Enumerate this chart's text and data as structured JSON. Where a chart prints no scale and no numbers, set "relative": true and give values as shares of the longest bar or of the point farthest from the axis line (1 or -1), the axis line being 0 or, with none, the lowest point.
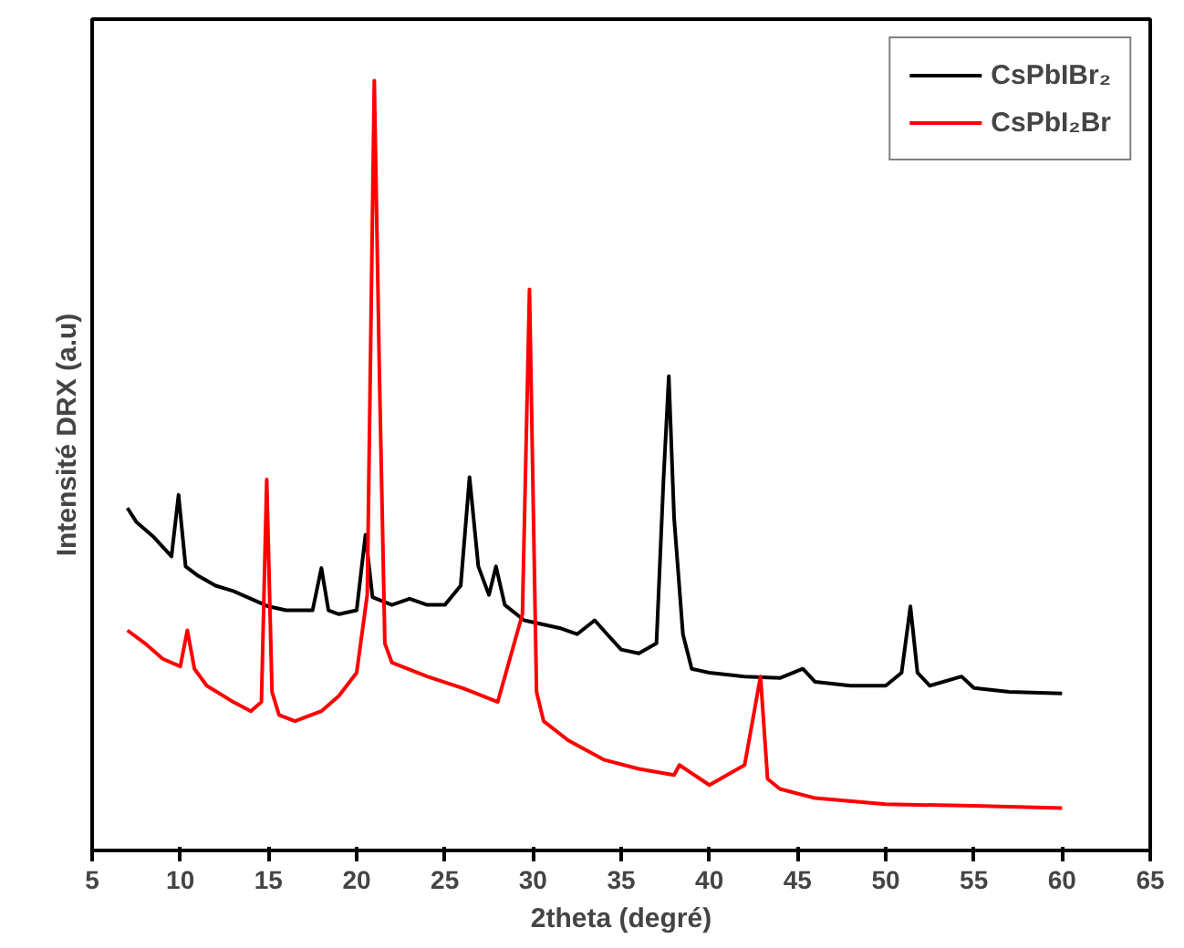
{
  "chart_data": {
    "type": "line",
    "relative": true,
    "xlabel": "2theta (degré)",
    "ylabel": "Intensité DRX (a.u)",
    "xlim": [
      5,
      65
    ],
    "xticks": [
      5,
      10,
      15,
      20,
      25,
      30,
      35,
      40,
      45,
      50,
      55,
      60,
      65
    ],
    "grid": false,
    "legend": "top right",
    "marker": "none",
    "line_style": "solid",
    "series": [
      {
        "name": "CsPbIBr₂",
        "color": "#000000",
        "x": [
          7,
          7.5,
          8.5,
          9.5,
          9.9,
          10.3,
          11,
          12,
          13,
          14,
          15,
          16,
          17.5,
          18,
          18.4,
          19,
          20,
          20.5,
          20.9,
          22,
          23,
          24,
          25,
          25.9,
          26.4,
          26.9,
          27.5,
          27.9,
          28.4,
          29.5,
          30.5,
          31.5,
          32.5,
          33.5,
          34.2,
          35,
          36,
          37,
          37.4,
          37.7,
          38,
          38.5,
          39,
          40,
          42,
          44,
          45.3,
          46,
          48,
          50,
          50.9,
          51.4,
          51.8,
          52.5,
          54.3,
          55,
          57,
          60
        ],
        "values": [
          0.445,
          0.427,
          0.407,
          0.382,
          0.462,
          0.369,
          0.357,
          0.344,
          0.337,
          0.327,
          0.317,
          0.312,
          0.312,
          0.367,
          0.312,
          0.307,
          0.312,
          0.41,
          0.329,
          0.319,
          0.327,
          0.319,
          0.319,
          0.344,
          0.485,
          0.369,
          0.332,
          0.369,
          0.319,
          0.299,
          0.294,
          0.289,
          0.281,
          0.299,
          0.281,
          0.261,
          0.256,
          0.269,
          0.482,
          0.616,
          0.432,
          0.281,
          0.236,
          0.231,
          0.226,
          0.224,
          0.236,
          0.219,
          0.214,
          0.214,
          0.231,
          0.317,
          0.231,
          0.214,
          0.226,
          0.211,
          0.206,
          0.204
        ]
      },
      {
        "name": "CsPbI₂Br",
        "color": "#ff0000",
        "x": [
          7,
          8,
          9,
          10,
          10.4,
          10.8,
          11.5,
          13,
          14,
          14.6,
          14.9,
          15.2,
          15.6,
          16.5,
          18,
          19,
          20,
          20.6,
          21.0,
          21.3,
          21.6,
          22,
          24,
          26,
          28,
          29.4,
          29.8,
          30.2,
          30.6,
          32,
          34,
          36,
          38,
          38.3,
          40,
          42,
          42.9,
          43.3,
          44,
          46,
          50,
          55,
          60
        ],
        "values": [
          0.286,
          0.269,
          0.249,
          0.239,
          0.286,
          0.236,
          0.214,
          0.193,
          0.181,
          0.193,
          0.482,
          0.206,
          0.176,
          0.168,
          0.181,
          0.201,
          0.231,
          0.332,
          1,
          0.608,
          0.269,
          0.244,
          0.226,
          0.211,
          0.193,
          0.307,
          0.729,
          0.206,
          0.168,
          0.143,
          0.118,
          0.106,
          0.098,
          0.111,
          0.085,
          0.111,
          0.226,
          0.093,
          0.08,
          0.068,
          0.06,
          0.058,
          0.055
        ]
      }
    ]
  }
}
